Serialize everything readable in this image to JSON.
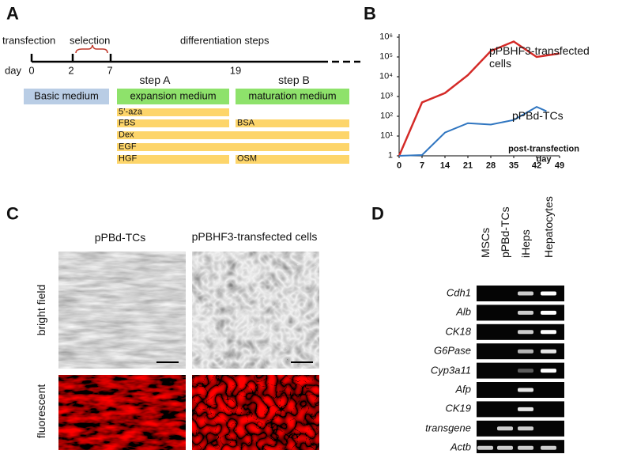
{
  "panel_a": {
    "label": "A",
    "events": [
      "transfection",
      "selection",
      "differentiation steps"
    ],
    "day_label": "day",
    "days": [
      0,
      2,
      7,
      19
    ],
    "steps": [
      "step A",
      "step B"
    ],
    "media": [
      "Basic medium",
      "expansion medium",
      "maturation medium"
    ],
    "factors_step_a": [
      "5’-aza",
      "FBS",
      "Dex",
      "EGF",
      "HGF"
    ],
    "factors_step_b": [
      "BSA",
      "OSM"
    ]
  },
  "chart_data": {
    "type": "line",
    "label": "B",
    "x_label": "post-transfection day",
    "xlim": [
      0,
      49
    ],
    "xticks": [
      0,
      7,
      14,
      21,
      28,
      35,
      42,
      49
    ],
    "ylim": [
      1,
      1000000
    ],
    "log_scale": true,
    "grid": false,
    "yticks": [
      1,
      {
        "value": 10,
        "label": "10¹"
      },
      {
        "value": 100,
        "label": "10²"
      },
      {
        "value": 1000,
        "label": "10³"
      },
      {
        "value": 10000,
        "label": "10⁴"
      },
      {
        "value": 100000,
        "label": "10⁵"
      },
      {
        "value": 1000000,
        "label": "10⁶"
      }
    ],
    "series": [
      {
        "name": "pPBHF3-transfected cells",
        "color": "#d42a27",
        "x": [
          0,
          7,
          14,
          21,
          28,
          35,
          42,
          49
        ],
        "values": [
          1,
          500,
          1500,
          12000,
          200000,
          600000,
          100000,
          150000
        ]
      },
      {
        "name": "pPBd-TCs",
        "color": "#2f75c0",
        "x": [
          0,
          7,
          14,
          21,
          28,
          35,
          42,
          45
        ],
        "values": [
          1,
          1.1,
          15,
          45,
          38,
          65,
          300,
          180
        ]
      }
    ]
  },
  "panel_c": {
    "label": "C",
    "columns": [
      "pPBd-TCs",
      "pPBHF3-transfected cells"
    ],
    "rows": [
      "bright field",
      "fluorescent"
    ]
  },
  "panel_d": {
    "label": "D",
    "lanes": [
      "MSCs",
      "pPBd-TCs",
      "iHeps",
      "Hepatocytes"
    ],
    "genes": [
      "Cdh1",
      "Alb",
      "CK18",
      "G6Pase",
      "Cyp3a11",
      "Afp",
      "CK19",
      "transgene",
      "Actb"
    ]
  }
}
